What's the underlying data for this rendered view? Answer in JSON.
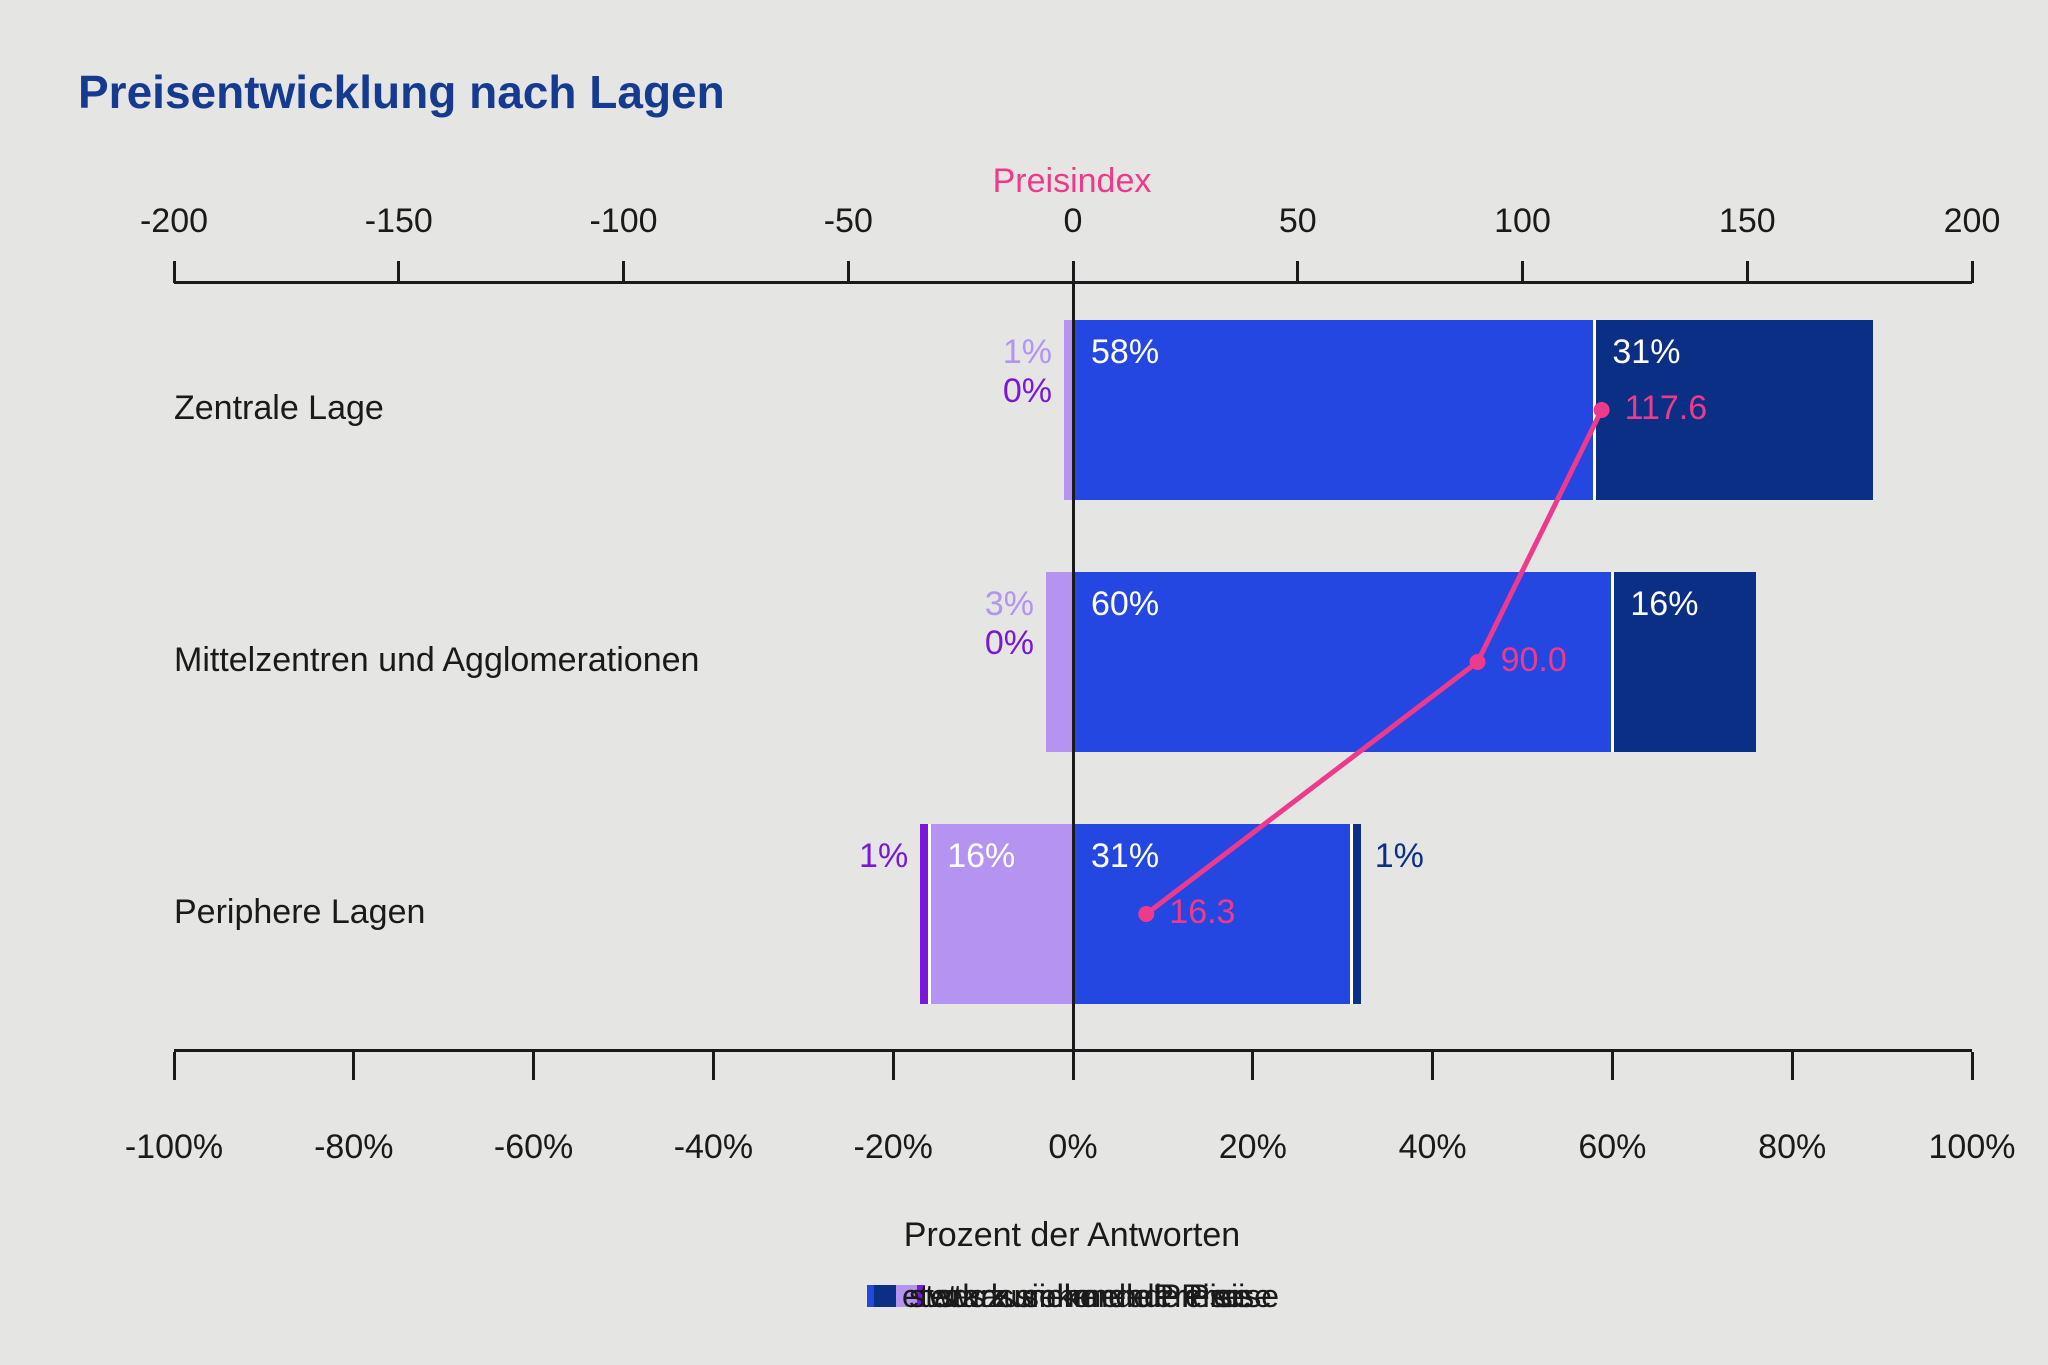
{
  "title": "Preisentwicklung nach Lagen",
  "colors": {
    "background": "#e5e5e3",
    "text": "#1a1a1a",
    "axis": "#1a1a1a",
    "title": "#163a8f",
    "separator": "#ffffff",
    "inside_label": "#ffffff",
    "price_index_pink": "#ee3a8c"
  },
  "chart_data": {
    "type": "bar",
    "orientation": "horizontal",
    "stacked": true,
    "diverging": true,
    "title": "Preisentwicklung nach Lagen",
    "categories": [
      "Zentrale Lage",
      "Mittelzentren und Agglomerationen",
      "Periphere Lagen"
    ],
    "series": [
      {
        "name": "stark sinkende Preise",
        "side": "negative",
        "values": [
          0,
          0,
          1
        ],
        "color": "#7a18d9"
      },
      {
        "name": "etwas sinkende Preise",
        "side": "negative",
        "values": [
          1,
          3,
          16
        ],
        "color": "#b593f0"
      },
      {
        "name": "etwas zunehmende Preise",
        "side": "positive",
        "values": [
          58,
          60,
          31
        ],
        "color": "#2547e1"
      },
      {
        "name": "stark zunehmende Preise",
        "side": "positive",
        "values": [
          31,
          16,
          1
        ],
        "color": "#0b2f85"
      }
    ],
    "line_series": {
      "name": "Preisindex",
      "values": [
        117.6,
        90.0,
        16.3
      ],
      "labels": [
        "117.6",
        "90.0",
        "16.3"
      ],
      "color": "#ee3a8c",
      "axis": "top"
    },
    "top_axis": {
      "label": "Preisindex",
      "min": -200,
      "max": 200,
      "ticks": [
        -200,
        -150,
        -100,
        -50,
        0,
        50,
        100,
        150,
        200
      ]
    },
    "bottom_axis": {
      "label": "Prozent der Antworten",
      "min": -100,
      "max": 100,
      "ticks_pct": [
        -100,
        -80,
        -60,
        -40,
        -20,
        0,
        20,
        40,
        60,
        80,
        100
      ]
    },
    "grid": false,
    "legend_position": "bottom",
    "unit_bars": "percent of answers",
    "unit_line": "index points"
  }
}
